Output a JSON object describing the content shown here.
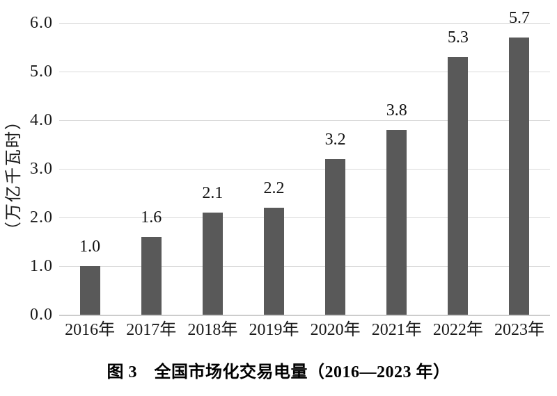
{
  "chart_data": {
    "type": "bar",
    "title": "图 3　全国市场化交易电量（2016—2023 年）",
    "ylabel": "（万亿千瓦时）",
    "categories": [
      "2016年",
      "2017年",
      "2018年",
      "2019年",
      "2020年",
      "2021年",
      "2022年",
      "2023年"
    ],
    "values": [
      1.0,
      1.6,
      2.1,
      2.2,
      3.2,
      3.8,
      5.3,
      5.7
    ],
    "data_labels": [
      "1.0",
      "1.6",
      "2.1",
      "2.2",
      "3.2",
      "3.8",
      "5.3",
      "5.7"
    ],
    "ylim": [
      0,
      6.0
    ],
    "ytick_step": 1.0,
    "ytick_labels": [
      "0.0",
      "1.0",
      "2.0",
      "3.0",
      "4.0",
      "5.0",
      "6.0"
    ],
    "grid": true,
    "legend_position": "none",
    "bar_color": "#595959",
    "gridline_color": "#d9d9d9",
    "axis_line_color": "#cccccc",
    "text_color": "#1a1a1a"
  }
}
